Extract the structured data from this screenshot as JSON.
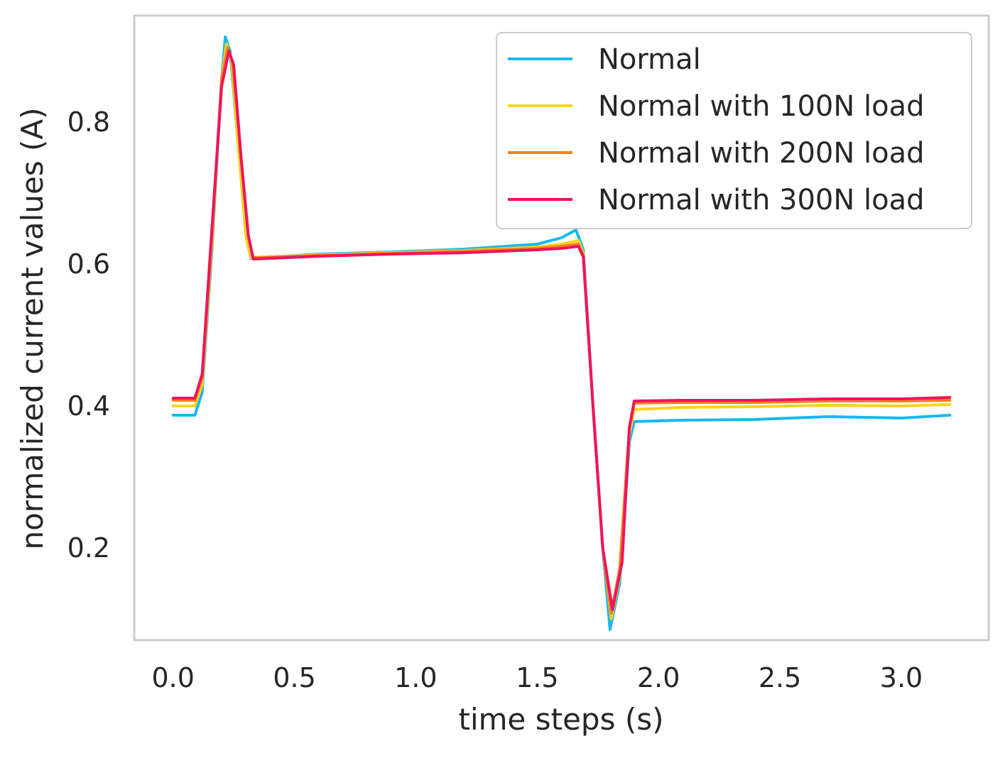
{
  "chart_data": {
    "type": "line",
    "title": "",
    "xlabel": "time steps (s)",
    "ylabel": "normalized current values (A)",
    "xlim": [
      -0.16,
      3.36
    ],
    "ylim": [
      0.07,
      0.95
    ],
    "xticks": [
      0.0,
      0.5,
      1.0,
      1.5,
      2.0,
      2.5,
      3.0
    ],
    "xtick_labels": [
      "0.0",
      "0.5",
      "1.0",
      "1.5",
      "2.0",
      "2.5",
      "3.0"
    ],
    "yticks": [
      0.2,
      0.4,
      0.6,
      0.8
    ],
    "ytick_labels": [
      "0.2",
      "0.4",
      "0.6",
      "0.8"
    ],
    "grid": false,
    "legend": "top-right",
    "series": [
      {
        "name": "Normal",
        "color": "#17b8f0",
        "points": [
          [
            0.0,
            0.387
          ],
          [
            0.09,
            0.387
          ],
          [
            0.12,
            0.42
          ],
          [
            0.16,
            0.62
          ],
          [
            0.2,
            0.86
          ],
          [
            0.215,
            0.92
          ],
          [
            0.235,
            0.9
          ],
          [
            0.27,
            0.76
          ],
          [
            0.3,
            0.64
          ],
          [
            0.32,
            0.608
          ],
          [
            0.6,
            0.614
          ],
          [
            0.9,
            0.617
          ],
          [
            1.2,
            0.621
          ],
          [
            1.5,
            0.628
          ],
          [
            1.6,
            0.637
          ],
          [
            1.66,
            0.648
          ],
          [
            1.69,
            0.62
          ],
          [
            1.73,
            0.4
          ],
          [
            1.77,
            0.2
          ],
          [
            1.8,
            0.085
          ],
          [
            1.84,
            0.15
          ],
          [
            1.88,
            0.35
          ],
          [
            1.9,
            0.378
          ],
          [
            2.1,
            0.38
          ],
          [
            2.4,
            0.381
          ],
          [
            2.7,
            0.385
          ],
          [
            3.0,
            0.383
          ],
          [
            3.2,
            0.387
          ]
        ]
      },
      {
        "name": "Normal with 100N load",
        "color": "#f8d41e",
        "points": [
          [
            0.0,
            0.4
          ],
          [
            0.09,
            0.4
          ],
          [
            0.12,
            0.43
          ],
          [
            0.16,
            0.63
          ],
          [
            0.2,
            0.86
          ],
          [
            0.22,
            0.91
          ],
          [
            0.24,
            0.89
          ],
          [
            0.27,
            0.76
          ],
          [
            0.3,
            0.64
          ],
          [
            0.32,
            0.609
          ],
          [
            0.6,
            0.613
          ],
          [
            0.9,
            0.616
          ],
          [
            1.2,
            0.619
          ],
          [
            1.5,
            0.624
          ],
          [
            1.6,
            0.628
          ],
          [
            1.67,
            0.633
          ],
          [
            1.69,
            0.615
          ],
          [
            1.73,
            0.4
          ],
          [
            1.77,
            0.2
          ],
          [
            1.805,
            0.1
          ],
          [
            1.84,
            0.16
          ],
          [
            1.88,
            0.36
          ],
          [
            1.9,
            0.395
          ],
          [
            2.1,
            0.398
          ],
          [
            2.4,
            0.399
          ],
          [
            2.7,
            0.401
          ],
          [
            3.0,
            0.4
          ],
          [
            3.2,
            0.402
          ]
        ]
      },
      {
        "name": "Normal with 200N load",
        "color": "#f4801c",
        "points": [
          [
            0.0,
            0.408
          ],
          [
            0.09,
            0.408
          ],
          [
            0.12,
            0.44
          ],
          [
            0.16,
            0.64
          ],
          [
            0.2,
            0.86
          ],
          [
            0.225,
            0.905
          ],
          [
            0.245,
            0.885
          ],
          [
            0.28,
            0.75
          ],
          [
            0.31,
            0.64
          ],
          [
            0.33,
            0.609
          ],
          [
            0.6,
            0.612
          ],
          [
            0.9,
            0.615
          ],
          [
            1.2,
            0.618
          ],
          [
            1.5,
            0.622
          ],
          [
            1.6,
            0.625
          ],
          [
            1.67,
            0.628
          ],
          [
            1.69,
            0.612
          ],
          [
            1.73,
            0.4
          ],
          [
            1.77,
            0.2
          ],
          [
            1.805,
            0.108
          ],
          [
            1.84,
            0.17
          ],
          [
            1.88,
            0.37
          ],
          [
            1.9,
            0.404
          ],
          [
            2.1,
            0.405
          ],
          [
            2.4,
            0.405
          ],
          [
            2.7,
            0.407
          ],
          [
            3.0,
            0.407
          ],
          [
            3.2,
            0.408
          ]
        ]
      },
      {
        "name": "Normal with 300N load",
        "color": "#f0145c",
        "points": [
          [
            0.0,
            0.411
          ],
          [
            0.09,
            0.411
          ],
          [
            0.12,
            0.445
          ],
          [
            0.16,
            0.65
          ],
          [
            0.2,
            0.85
          ],
          [
            0.23,
            0.9
          ],
          [
            0.25,
            0.88
          ],
          [
            0.28,
            0.75
          ],
          [
            0.31,
            0.64
          ],
          [
            0.33,
            0.607
          ],
          [
            0.6,
            0.611
          ],
          [
            0.9,
            0.614
          ],
          [
            1.2,
            0.616
          ],
          [
            1.5,
            0.62
          ],
          [
            1.6,
            0.622
          ],
          [
            1.67,
            0.625
          ],
          [
            1.69,
            0.61
          ],
          [
            1.73,
            0.4
          ],
          [
            1.77,
            0.2
          ],
          [
            1.81,
            0.113
          ],
          [
            1.85,
            0.18
          ],
          [
            1.88,
            0.37
          ],
          [
            1.9,
            0.407
          ],
          [
            2.1,
            0.408
          ],
          [
            2.4,
            0.408
          ],
          [
            2.7,
            0.41
          ],
          [
            3.0,
            0.41
          ],
          [
            3.2,
            0.412
          ]
        ]
      }
    ]
  }
}
